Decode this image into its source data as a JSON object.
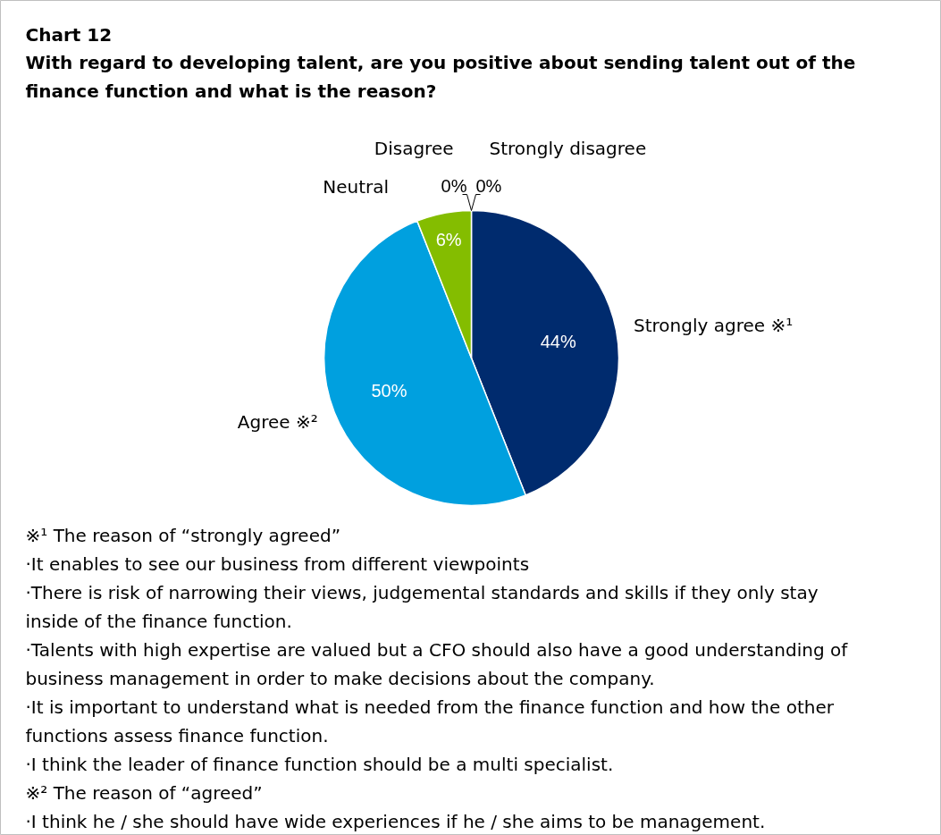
{
  "chart_data": {
    "type": "pie",
    "title": "Chart 12",
    "subtitle": "With regard to developing talent, are you positive about sending talent out of the finance function and what is the reason?",
    "categories": [
      "Strongly agree ※¹",
      "Agree ※²",
      "Neutral",
      "Disagree",
      "Strongly disagree"
    ],
    "values": [
      44,
      50,
      6,
      0,
      0
    ],
    "colors": [
      "#002b6e",
      "#00a0df",
      "#84bd00",
      "#a7a8aa",
      "#53565a"
    ],
    "value_labels": [
      "44%",
      "50%",
      "6%",
      "0%",
      "0%"
    ],
    "annotations": [
      "※¹ The reason of “strongly agreed”",
      "·It enables to see our business from different viewpoints",
      "·There is risk of narrowing their views, judgemental standards and skills if they only stay inside of the finance function.",
      "·Talents with high expertise are valued but a CFO should also have a good understanding of business management in order to make decisions about the company.",
      "·It is important to understand what is needed from the finance function and how the other functions assess finance function.",
      "·I think the leader of finance function should be a multi specialist.",
      "※² The reason of “agreed”",
      "·I think he / she should have wide experiences if he / she aims to be management."
    ]
  }
}
